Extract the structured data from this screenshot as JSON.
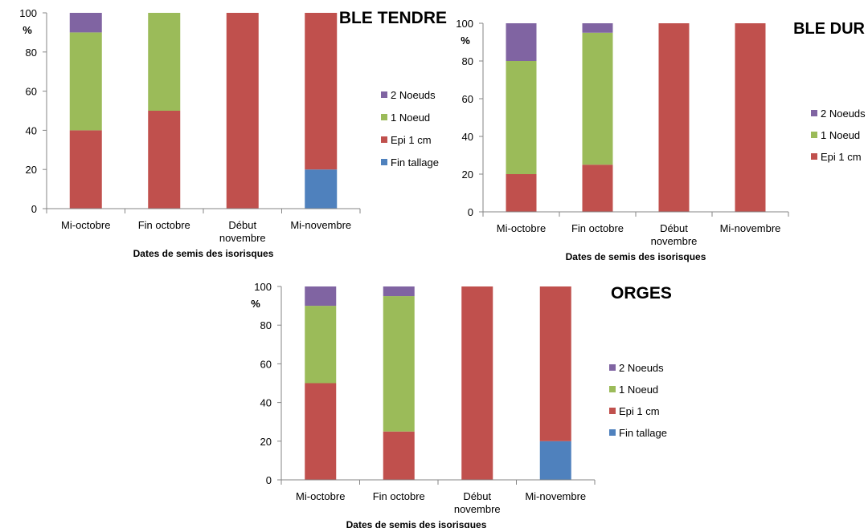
{
  "colors": {
    "Fin tallage": "#4f81bd",
    "Epi 1 cm": "#c0504d",
    "1 Noeud": "#9bbb59",
    "2 Noeuds": "#8064a2",
    "axis": "#868686"
  },
  "chart_data": [
    {
      "type": "bar",
      "stacked": true,
      "title": "BLE TENDRE",
      "xlabel": "Dates de semis des isorisques",
      "ylabel": "%",
      "ylim": [
        0,
        100
      ],
      "yticks": [
        0,
        20,
        40,
        60,
        80,
        100
      ],
      "grid": false,
      "legend": "right",
      "categories": [
        "Mi-octobre",
        "Fin octobre",
        "Début novembre",
        "Mi-novembre"
      ],
      "category_lines": [
        [
          "Mi-octobre"
        ],
        [
          "Fin octobre"
        ],
        [
          "Début",
          "novembre"
        ],
        [
          "Mi-novembre"
        ]
      ],
      "legend_order": [
        "2 Noeuds",
        "1 Noeud",
        "Epi 1 cm",
        "Fin tallage"
      ],
      "series": [
        {
          "name": "Fin tallage",
          "values": [
            0,
            0,
            0,
            20
          ]
        },
        {
          "name": "Epi 1 cm",
          "values": [
            40,
            50,
            100,
            80
          ]
        },
        {
          "name": "1 Noeud",
          "values": [
            50,
            50,
            0,
            0
          ]
        },
        {
          "name": "2 Noeuds",
          "values": [
            10,
            0,
            0,
            0
          ]
        }
      ]
    },
    {
      "type": "bar",
      "stacked": true,
      "title": "BLE DUR",
      "xlabel": "Dates de semis des isorisques",
      "ylabel": "%",
      "ylim": [
        0,
        100
      ],
      "yticks": [
        0,
        20,
        40,
        60,
        80,
        100
      ],
      "grid": false,
      "legend": "right",
      "categories": [
        "Mi-octobre",
        "Fin octobre",
        "Début novembre",
        "Mi-novembre"
      ],
      "category_lines": [
        [
          "Mi-octobre"
        ],
        [
          "Fin octobre"
        ],
        [
          "Début",
          "novembre"
        ],
        [
          "Mi-novembre"
        ]
      ],
      "legend_order": [
        "2 Noeuds",
        "1 Noeud",
        "Epi 1 cm"
      ],
      "series": [
        {
          "name": "Epi 1 cm",
          "values": [
            20,
            25,
            100,
            100
          ]
        },
        {
          "name": "1 Noeud",
          "values": [
            60,
            70,
            0,
            0
          ]
        },
        {
          "name": "2 Noeuds",
          "values": [
            20,
            5,
            0,
            0
          ]
        }
      ]
    },
    {
      "type": "bar",
      "stacked": true,
      "title": "ORGES",
      "xlabel": "Dates de semis des isorisques",
      "ylabel": "%",
      "ylim": [
        0,
        100
      ],
      "yticks": [
        0,
        20,
        40,
        60,
        80,
        100
      ],
      "grid": false,
      "legend": "right",
      "categories": [
        "Mi-octobre",
        "Fin octobre",
        "Début novembre",
        "Mi-novembre"
      ],
      "category_lines": [
        [
          "Mi-octobre"
        ],
        [
          "Fin octobre"
        ],
        [
          "Début",
          "novembre"
        ],
        [
          "Mi-novembre"
        ]
      ],
      "legend_order": [
        "2 Noeuds",
        "1 Noeud",
        "Epi 1 cm",
        "Fin tallage"
      ],
      "series": [
        {
          "name": "Fin tallage",
          "values": [
            0,
            0,
            0,
            20
          ]
        },
        {
          "name": "Epi 1 cm",
          "values": [
            50,
            25,
            100,
            80
          ]
        },
        {
          "name": "1 Noeud",
          "values": [
            40,
            70,
            0,
            0
          ]
        },
        {
          "name": "2 Noeuds",
          "values": [
            10,
            5,
            0,
            0
          ]
        }
      ]
    }
  ]
}
